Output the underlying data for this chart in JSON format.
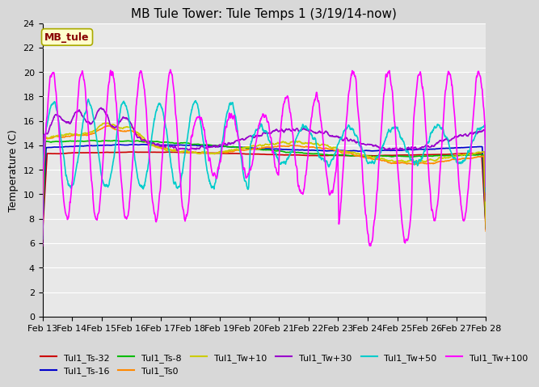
{
  "title": "MB Tule Tower: Tule Temps 1 (3/19/14-now)",
  "ylabel": "Temperature (C)",
  "xlim": [
    13,
    28
  ],
  "ylim": [
    0,
    24
  ],
  "yticks": [
    0,
    2,
    4,
    6,
    8,
    10,
    12,
    14,
    16,
    18,
    20,
    22,
    24
  ],
  "xtick_labels": [
    "Feb 13",
    "Feb 14",
    "Feb 15",
    "Feb 16",
    "Feb 17",
    "Feb 18",
    "Feb 19",
    "Feb 20",
    "Feb 21",
    "Feb 22",
    "Feb 23",
    "Feb 24",
    "Feb 25",
    "Feb 26",
    "Feb 27",
    "Feb 28"
  ],
  "series": [
    {
      "label": "Tul1_Ts-32",
      "color": "#cc0000",
      "lw": 1.2,
      "zorder": 5
    },
    {
      "label": "Tul1_Ts-16",
      "color": "#0000cc",
      "lw": 1.2,
      "zorder": 5
    },
    {
      "label": "Tul1_Ts-8",
      "color": "#00bb00",
      "lw": 1.2,
      "zorder": 5
    },
    {
      "label": "Tul1_Ts0",
      "color": "#ff8800",
      "lw": 1.2,
      "zorder": 5
    },
    {
      "label": "Tul1_Tw+10",
      "color": "#cccc00",
      "lw": 1.2,
      "zorder": 5
    },
    {
      "label": "Tul1_Tw+30",
      "color": "#9900cc",
      "lw": 1.2,
      "zorder": 5
    },
    {
      "label": "Tul1_Tw+50",
      "color": "#00cccc",
      "lw": 1.2,
      "zorder": 5
    },
    {
      "label": "Tul1_Tw+100",
      "color": "#ff00ff",
      "lw": 1.2,
      "zorder": 6
    }
  ],
  "fig_bg": "#d8d8d8",
  "plot_bg": "#e8e8e8",
  "annotation": {
    "text": "MB_tule",
    "facecolor": "#ffffcc",
    "edgecolor": "#aaaa00",
    "textcolor": "#880000",
    "fontsize": 9,
    "fontweight": "bold"
  },
  "legend_fontsize": 8,
  "title_fontsize": 11,
  "ylabel_fontsize": 9,
  "tick_fontsize": 8
}
